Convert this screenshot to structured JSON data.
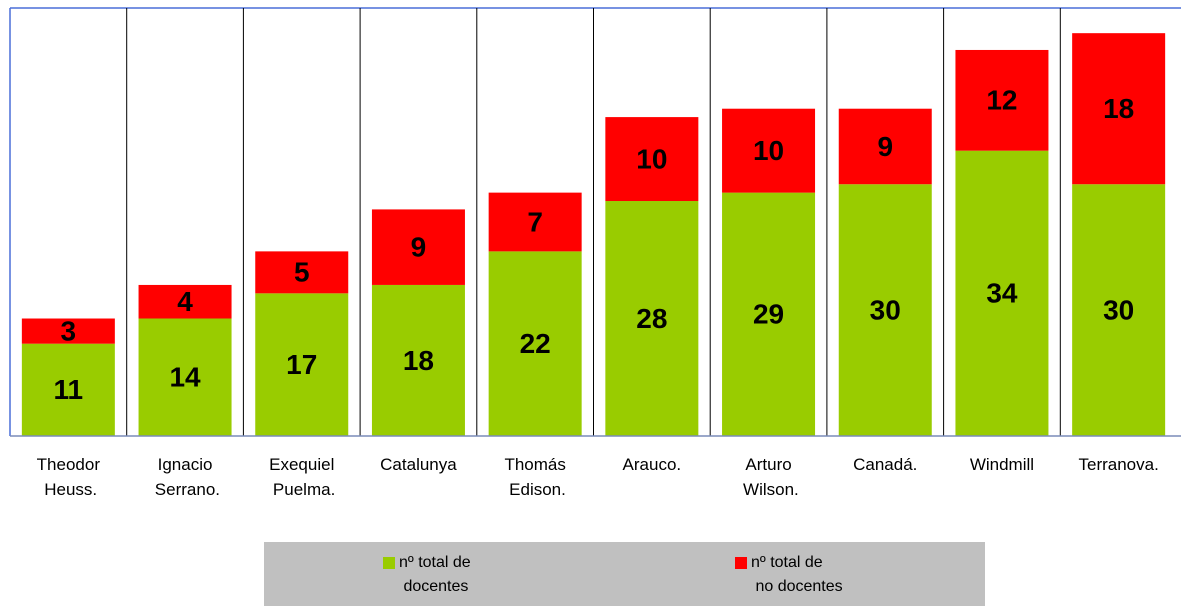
{
  "chart_data": {
    "type": "stacked_bar",
    "categories": [
      "Theodor Heuss.",
      "Ignacio Serrano.",
      "Exequiel Puelma.",
      "Catalunya",
      "Thomás Edison.",
      "Arauco.",
      "Arturo Wilson.",
      "Canadá.",
      "Windmill",
      "Terranova."
    ],
    "series": [
      {
        "name": "nº total de docentes",
        "color": "#99cc00",
        "values": [
          11,
          14,
          17,
          18,
          22,
          28,
          29,
          30,
          34,
          30
        ]
      },
      {
        "name": "nº total de no docentes",
        "color": "#ff0000",
        "values": [
          3,
          4,
          5,
          9,
          7,
          10,
          10,
          9,
          12,
          18
        ]
      }
    ],
    "ylim": [
      0,
      51
    ],
    "legend": "bottom"
  }
}
